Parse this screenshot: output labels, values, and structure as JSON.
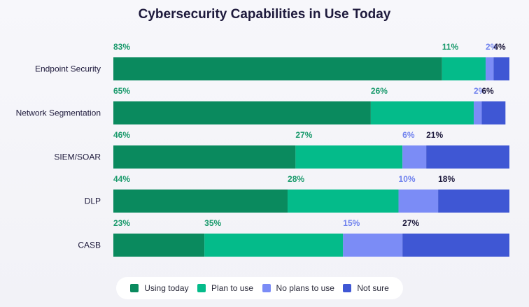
{
  "chart_data": {
    "type": "bar",
    "orientation": "horizontal",
    "stacked": true,
    "title": "Cybersecurity Capabilities in Use Today",
    "categories": [
      "Endpoint Security",
      "Network Segmentation",
      "SIEM/SOAR",
      "DLP",
      "CASB"
    ],
    "series": [
      {
        "name": "Using today",
        "values": [
          83,
          65,
          46,
          44,
          23
        ],
        "color": "#0a8a5e"
      },
      {
        "name": "Plan to use",
        "values": [
          11,
          26,
          27,
          28,
          35
        ],
        "color": "#04bb8a"
      },
      {
        "name": "No plans to use",
        "values": [
          2,
          2,
          6,
          10,
          15
        ],
        "color": "#7b8cf6"
      },
      {
        "name": "Not sure",
        "values": [
          4,
          6,
          21,
          18,
          27
        ],
        "color": "#3f57d4"
      }
    ],
    "label_colors": [
      "#1a9a6c",
      "#1a9a6c",
      "#7183ee",
      "#1e1a3c"
    ],
    "value_suffix": "%",
    "legend_position": "bottom",
    "xlim": [
      0,
      100
    ]
  }
}
